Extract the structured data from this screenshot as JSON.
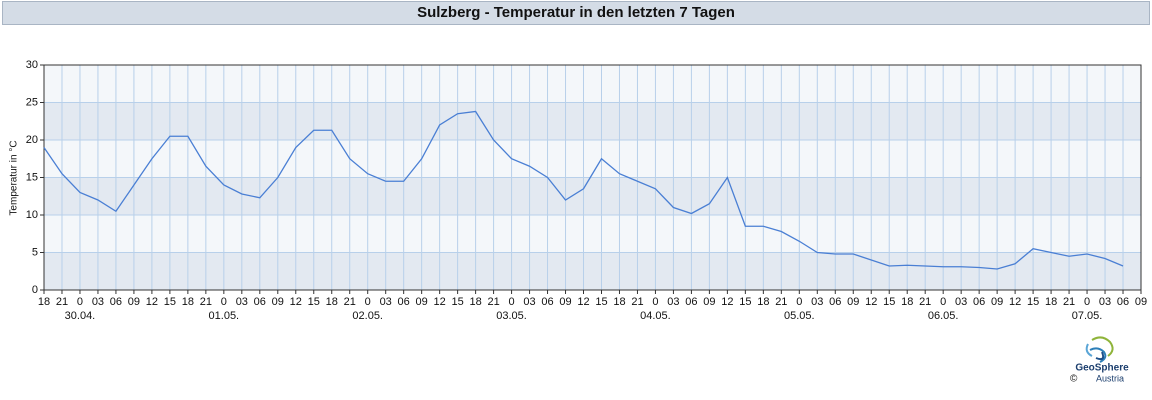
{
  "chart_data": {
    "type": "line",
    "title": "Sulzberg - Temperatur in den letzten 7 Tagen",
    "y_label": "Temperatur in °C",
    "color": "#4a7fd4",
    "grid": true,
    "x": [
      0,
      3,
      6,
      9,
      12,
      15,
      18,
      21,
      24,
      27,
      30,
      33,
      36,
      39,
      42,
      45,
      48,
      51,
      54,
      57,
      60,
      63,
      66,
      69,
      72,
      75,
      78,
      81,
      84,
      87,
      90,
      93,
      96,
      99,
      102,
      105,
      108,
      111,
      114,
      117,
      120,
      123,
      126,
      129,
      132,
      135,
      138,
      141,
      144,
      147,
      150,
      153,
      156,
      159,
      162,
      165,
      168,
      171,
      174,
      177,
      180
    ],
    "values": [
      19,
      15.5,
      13,
      12,
      10.5,
      14,
      17.5,
      20.5,
      20.5,
      16.5,
      14,
      12.8,
      12.3,
      15,
      19,
      21.3,
      21.3,
      17.5,
      15.5,
      14.5,
      14.5,
      17.5,
      22,
      23.5,
      23.8,
      20,
      17.5,
      16.5,
      15,
      12,
      13.5,
      17.5,
      15.5,
      14.5,
      13.5,
      11,
      10.2,
      11.5,
      15,
      8.5,
      8.5,
      7.8,
      6.5,
      5,
      4.8,
      4.8,
      4,
      3.2,
      3.3,
      3.2,
      3.1,
      3.1,
      3,
      2.8,
      3.5,
      5.5,
      5,
      4.5,
      4.8,
      4.2,
      3.2
    ],
    "xlim": [
      0,
      183
    ],
    "xticks": [
      {
        "value": 0,
        "label": "18"
      },
      {
        "value": 3,
        "label": "21"
      },
      {
        "value": 6,
        "label": "0"
      },
      {
        "value": 9,
        "label": "03"
      },
      {
        "value": 12,
        "label": "06"
      },
      {
        "value": 15,
        "label": "09"
      },
      {
        "value": 18,
        "label": "12"
      },
      {
        "value": 21,
        "label": "15"
      },
      {
        "value": 24,
        "label": "18"
      },
      {
        "value": 27,
        "label": "21"
      },
      {
        "value": 30,
        "label": "0"
      },
      {
        "value": 33,
        "label": "03"
      },
      {
        "value": 36,
        "label": "06"
      },
      {
        "value": 39,
        "label": "09"
      },
      {
        "value": 42,
        "label": "12"
      },
      {
        "value": 45,
        "label": "15"
      },
      {
        "value": 48,
        "label": "18"
      },
      {
        "value": 51,
        "label": "21"
      },
      {
        "value": 54,
        "label": "0"
      },
      {
        "value": 57,
        "label": "03"
      },
      {
        "value": 60,
        "label": "06"
      },
      {
        "value": 63,
        "label": "09"
      },
      {
        "value": 66,
        "label": "12"
      },
      {
        "value": 69,
        "label": "15"
      },
      {
        "value": 72,
        "label": "18"
      },
      {
        "value": 75,
        "label": "21"
      },
      {
        "value": 78,
        "label": "0"
      },
      {
        "value": 81,
        "label": "03"
      },
      {
        "value": 84,
        "label": "06"
      },
      {
        "value": 87,
        "label": "09"
      },
      {
        "value": 90,
        "label": "12"
      },
      {
        "value": 93,
        "label": "15"
      },
      {
        "value": 96,
        "label": "18"
      },
      {
        "value": 99,
        "label": "21"
      },
      {
        "value": 102,
        "label": "0"
      },
      {
        "value": 105,
        "label": "03"
      },
      {
        "value": 108,
        "label": "06"
      },
      {
        "value": 111,
        "label": "09"
      },
      {
        "value": 114,
        "label": "12"
      },
      {
        "value": 117,
        "label": "15"
      },
      {
        "value": 120,
        "label": "18"
      },
      {
        "value": 123,
        "label": "21"
      },
      {
        "value": 126,
        "label": "0"
      },
      {
        "value": 129,
        "label": "03"
      },
      {
        "value": 132,
        "label": "06"
      },
      {
        "value": 135,
        "label": "09"
      },
      {
        "value": 138,
        "label": "12"
      },
      {
        "value": 141,
        "label": "15"
      },
      {
        "value": 144,
        "label": "18"
      },
      {
        "value": 147,
        "label": "21"
      },
      {
        "value": 150,
        "label": "0"
      },
      {
        "value": 153,
        "label": "03"
      },
      {
        "value": 156,
        "label": "06"
      },
      {
        "value": 159,
        "label": "09"
      },
      {
        "value": 162,
        "label": "12"
      },
      {
        "value": 165,
        "label": "15"
      },
      {
        "value": 168,
        "label": "18"
      },
      {
        "value": 171,
        "label": "21"
      },
      {
        "value": 174,
        "label": "0"
      },
      {
        "value": 177,
        "label": "03"
      },
      {
        "value": 180,
        "label": "06"
      },
      {
        "value": 183,
        "label": "09"
      }
    ],
    "x_date_labels": [
      {
        "value": 6,
        "label": "30.04."
      },
      {
        "value": 30,
        "label": "01.05."
      },
      {
        "value": 54,
        "label": "02.05."
      },
      {
        "value": 78,
        "label": "03.05."
      },
      {
        "value": 102,
        "label": "04.05."
      },
      {
        "value": 126,
        "label": "05.05."
      },
      {
        "value": 150,
        "label": "06.05."
      },
      {
        "value": 174,
        "label": "07.05."
      }
    ],
    "ylim": [
      0,
      30
    ],
    "yticks": [
      0,
      5,
      10,
      15,
      20,
      25,
      30
    ]
  },
  "logo": {
    "name": "GeoSphere",
    "subname": "Austria",
    "copyright": "©"
  }
}
